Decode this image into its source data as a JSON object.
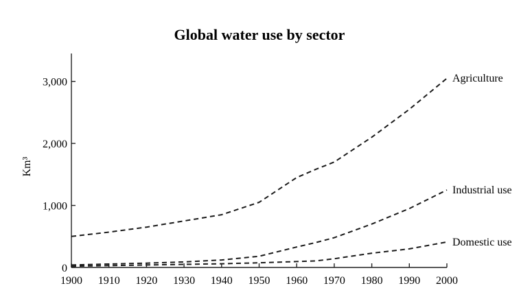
{
  "chart_data": {
    "type": "line",
    "title": "Global water use by sector",
    "xlabel": "",
    "ylabel": "Km³",
    "x": [
      1900,
      1910,
      1920,
      1930,
      1940,
      1950,
      1960,
      1965,
      1970,
      1980,
      1990,
      2000
    ],
    "xticks": [
      1900,
      1910,
      1920,
      1930,
      1940,
      1950,
      1960,
      1970,
      1980,
      1990,
      2000
    ],
    "xtick_labels": [
      "1900",
      "1910",
      "1920",
      "1930",
      "1940",
      "1950",
      "1960",
      "1970",
      "1980",
      "1990",
      "2000"
    ],
    "yticks": [
      0,
      1000,
      2000,
      3000
    ],
    "ytick_labels": [
      "0",
      "1,000",
      "2,000",
      "3,000"
    ],
    "xlim": [
      1900,
      2000
    ],
    "ylim": [
      0,
      3450
    ],
    "grid": false,
    "legend": "none",
    "series": [
      {
        "name": "Agriculture",
        "values": [
          500,
          570,
          650,
          750,
          850,
          1050,
          1450,
          1580,
          1700,
          2100,
          2550,
          3050
        ]
      },
      {
        "name": "Industrial use",
        "values": [
          40,
          55,
          70,
          90,
          120,
          180,
          330,
          400,
          480,
          700,
          950,
          1250
        ]
      },
      {
        "name": "Domestic use",
        "values": [
          20,
          30,
          40,
          50,
          60,
          75,
          95,
          105,
          140,
          230,
          300,
          410
        ]
      }
    ]
  }
}
